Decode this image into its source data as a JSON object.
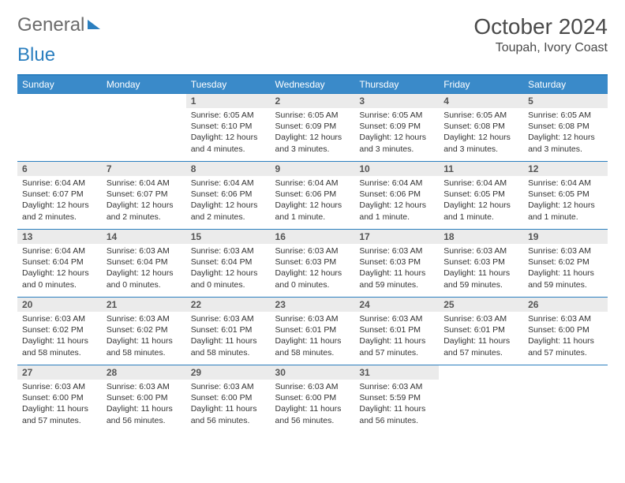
{
  "brand": {
    "part1": "General",
    "part2": "Blue"
  },
  "title": {
    "month": "October 2024",
    "location": "Toupah, Ivory Coast"
  },
  "colors": {
    "header_bg": "#3a8ac9",
    "header_text": "#ffffff",
    "rule": "#2b7fbf",
    "daynum_bg": "#ebebeb",
    "text": "#333333",
    "brand_gray": "#6b6b6b",
    "brand_blue": "#2b7fbf"
  },
  "weekdays": [
    "Sunday",
    "Monday",
    "Tuesday",
    "Wednesday",
    "Thursday",
    "Friday",
    "Saturday"
  ],
  "layout": {
    "first_weekday_index": 2,
    "days_in_month": 31,
    "rows": 5,
    "cols": 7
  },
  "days": [
    {
      "n": 1,
      "sr": "6:05 AM",
      "ss": "6:10 PM",
      "dl": "12 hours and 4 minutes."
    },
    {
      "n": 2,
      "sr": "6:05 AM",
      "ss": "6:09 PM",
      "dl": "12 hours and 3 minutes."
    },
    {
      "n": 3,
      "sr": "6:05 AM",
      "ss": "6:09 PM",
      "dl": "12 hours and 3 minutes."
    },
    {
      "n": 4,
      "sr": "6:05 AM",
      "ss": "6:08 PM",
      "dl": "12 hours and 3 minutes."
    },
    {
      "n": 5,
      "sr": "6:05 AM",
      "ss": "6:08 PM",
      "dl": "12 hours and 3 minutes."
    },
    {
      "n": 6,
      "sr": "6:04 AM",
      "ss": "6:07 PM",
      "dl": "12 hours and 2 minutes."
    },
    {
      "n": 7,
      "sr": "6:04 AM",
      "ss": "6:07 PM",
      "dl": "12 hours and 2 minutes."
    },
    {
      "n": 8,
      "sr": "6:04 AM",
      "ss": "6:06 PM",
      "dl": "12 hours and 2 minutes."
    },
    {
      "n": 9,
      "sr": "6:04 AM",
      "ss": "6:06 PM",
      "dl": "12 hours and 1 minute."
    },
    {
      "n": 10,
      "sr": "6:04 AM",
      "ss": "6:06 PM",
      "dl": "12 hours and 1 minute."
    },
    {
      "n": 11,
      "sr": "6:04 AM",
      "ss": "6:05 PM",
      "dl": "12 hours and 1 minute."
    },
    {
      "n": 12,
      "sr": "6:04 AM",
      "ss": "6:05 PM",
      "dl": "12 hours and 1 minute."
    },
    {
      "n": 13,
      "sr": "6:04 AM",
      "ss": "6:04 PM",
      "dl": "12 hours and 0 minutes."
    },
    {
      "n": 14,
      "sr": "6:03 AM",
      "ss": "6:04 PM",
      "dl": "12 hours and 0 minutes."
    },
    {
      "n": 15,
      "sr": "6:03 AM",
      "ss": "6:04 PM",
      "dl": "12 hours and 0 minutes."
    },
    {
      "n": 16,
      "sr": "6:03 AM",
      "ss": "6:03 PM",
      "dl": "12 hours and 0 minutes."
    },
    {
      "n": 17,
      "sr": "6:03 AM",
      "ss": "6:03 PM",
      "dl": "11 hours and 59 minutes."
    },
    {
      "n": 18,
      "sr": "6:03 AM",
      "ss": "6:03 PM",
      "dl": "11 hours and 59 minutes."
    },
    {
      "n": 19,
      "sr": "6:03 AM",
      "ss": "6:02 PM",
      "dl": "11 hours and 59 minutes."
    },
    {
      "n": 20,
      "sr": "6:03 AM",
      "ss": "6:02 PM",
      "dl": "11 hours and 58 minutes."
    },
    {
      "n": 21,
      "sr": "6:03 AM",
      "ss": "6:02 PM",
      "dl": "11 hours and 58 minutes."
    },
    {
      "n": 22,
      "sr": "6:03 AM",
      "ss": "6:01 PM",
      "dl": "11 hours and 58 minutes."
    },
    {
      "n": 23,
      "sr": "6:03 AM",
      "ss": "6:01 PM",
      "dl": "11 hours and 58 minutes."
    },
    {
      "n": 24,
      "sr": "6:03 AM",
      "ss": "6:01 PM",
      "dl": "11 hours and 57 minutes."
    },
    {
      "n": 25,
      "sr": "6:03 AM",
      "ss": "6:01 PM",
      "dl": "11 hours and 57 minutes."
    },
    {
      "n": 26,
      "sr": "6:03 AM",
      "ss": "6:00 PM",
      "dl": "11 hours and 57 minutes."
    },
    {
      "n": 27,
      "sr": "6:03 AM",
      "ss": "6:00 PM",
      "dl": "11 hours and 57 minutes."
    },
    {
      "n": 28,
      "sr": "6:03 AM",
      "ss": "6:00 PM",
      "dl": "11 hours and 56 minutes."
    },
    {
      "n": 29,
      "sr": "6:03 AM",
      "ss": "6:00 PM",
      "dl": "11 hours and 56 minutes."
    },
    {
      "n": 30,
      "sr": "6:03 AM",
      "ss": "6:00 PM",
      "dl": "11 hours and 56 minutes."
    },
    {
      "n": 31,
      "sr": "6:03 AM",
      "ss": "5:59 PM",
      "dl": "11 hours and 56 minutes."
    }
  ],
  "labels": {
    "sunrise": "Sunrise:",
    "sunset": "Sunset:",
    "daylight": "Daylight:"
  }
}
